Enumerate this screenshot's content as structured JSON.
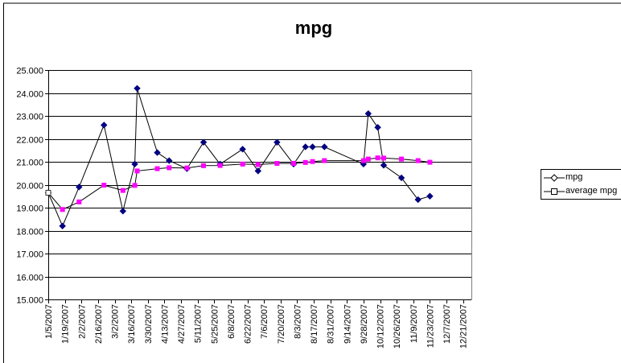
{
  "chart_data": {
    "type": "line",
    "title": "mpg",
    "xlabel": "",
    "ylabel": "",
    "ylim": [
      15,
      25
    ],
    "y_ticks": [
      "15.000",
      "16.000",
      "17.000",
      "18.000",
      "19.000",
      "20.000",
      "21.000",
      "22.000",
      "23.000",
      "24.000",
      "25.000"
    ],
    "x_tick_labels": [
      "1/5/2007",
      "1/19/2007",
      "2/2/2007",
      "2/16/2007",
      "3/2/2007",
      "3/16/2007",
      "3/30/2007",
      "4/13/2007",
      "4/27/2007",
      "5/11/2007",
      "5/25/2007",
      "6/8/2007",
      "6/22/2007",
      "7/6/2007",
      "7/20/2007",
      "8/3/2007",
      "8/17/2007",
      "8/31/2007",
      "9/14/2007",
      "9/28/2007",
      "10/12/2007",
      "10/26/2007",
      "11/9/2007",
      "11/23/2007",
      "12/7/2007",
      "12/21/2007"
    ],
    "x_range": [
      "2007-01-05",
      "2007-12-28"
    ],
    "grid": "horizontal",
    "legend": "right",
    "series": [
      {
        "name": "mpg",
        "color": "#000080",
        "marker": "diamond",
        "points": [
          [
            "2007-01-05",
            19.65
          ],
          [
            "2007-01-17",
            18.2
          ],
          [
            "2007-01-31",
            19.9
          ],
          [
            "2007-02-21",
            22.6
          ],
          [
            "2007-03-09",
            18.85
          ],
          [
            "2007-03-19",
            20.9
          ],
          [
            "2007-03-21",
            24.2
          ],
          [
            "2007-04-07",
            21.4
          ],
          [
            "2007-04-17",
            21.05
          ],
          [
            "2007-05-02",
            20.7
          ],
          [
            "2007-05-16",
            21.85
          ],
          [
            "2007-05-30",
            20.9
          ],
          [
            "2007-06-18",
            21.55
          ],
          [
            "2007-07-01",
            20.6
          ],
          [
            "2007-07-17",
            21.85
          ],
          [
            "2007-07-31",
            20.9
          ],
          [
            "2007-08-10",
            21.65
          ],
          [
            "2007-08-16",
            21.65
          ],
          [
            "2007-08-26",
            21.65
          ],
          [
            "2007-09-28",
            20.9
          ],
          [
            "2007-10-02",
            23.1
          ],
          [
            "2007-10-10",
            22.5
          ],
          [
            "2007-10-15",
            20.85
          ],
          [
            "2007-10-30",
            20.3
          ],
          [
            "2007-11-13",
            19.35
          ],
          [
            "2007-11-23",
            19.5
          ]
        ]
      },
      {
        "name": "average mpg",
        "color": "#ff00ff",
        "marker": "square",
        "points": [
          [
            "2007-01-05",
            19.65
          ],
          [
            "2007-01-17",
            18.92
          ],
          [
            "2007-01-31",
            19.25
          ],
          [
            "2007-02-21",
            19.98
          ],
          [
            "2007-03-09",
            19.75
          ],
          [
            "2007-03-19",
            19.97
          ],
          [
            "2007-03-21",
            20.6
          ],
          [
            "2007-04-07",
            20.7
          ],
          [
            "2007-04-17",
            20.74
          ],
          [
            "2007-05-02",
            20.73
          ],
          [
            "2007-05-16",
            20.83
          ],
          [
            "2007-05-30",
            20.84
          ],
          [
            "2007-06-18",
            20.9
          ],
          [
            "2007-07-01",
            20.88
          ],
          [
            "2007-07-17",
            20.93
          ],
          [
            "2007-07-31",
            20.93
          ],
          [
            "2007-08-10",
            20.97
          ],
          [
            "2007-08-16",
            21.01
          ],
          [
            "2007-08-26",
            21.05
          ],
          [
            "2007-09-28",
            21.05
          ],
          [
            "2007-10-02",
            21.12
          ],
          [
            "2007-10-10",
            21.17
          ],
          [
            "2007-10-15",
            21.16
          ],
          [
            "2007-10-30",
            21.12
          ],
          [
            "2007-11-13",
            21.05
          ],
          [
            "2007-11-23",
            20.98
          ]
        ]
      }
    ]
  }
}
